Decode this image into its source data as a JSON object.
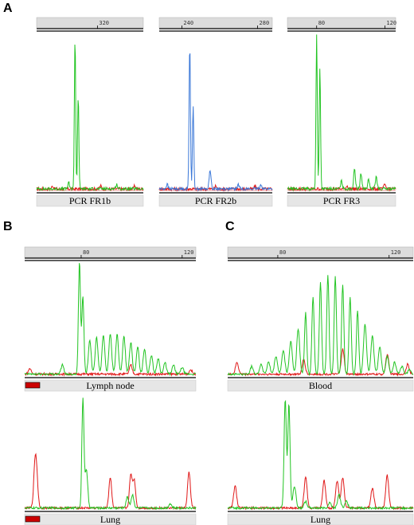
{
  "figure": {
    "panel_letters": {
      "a": "A",
      "b": "B",
      "c": "C"
    }
  },
  "colors": {
    "green": "#22c422",
    "blue": "#3b78d8",
    "red": "#e01818",
    "axis_bar": "#dcdcdc",
    "baseline": "#000000"
  },
  "chart_data": [
    {
      "id": "A1",
      "type": "line",
      "label": "PCR FR1b",
      "x_ticks": [
        "320"
      ],
      "series": [
        {
          "color": "green",
          "peaks": [
            [
              0.36,
              1.0
            ],
            [
              0.39,
              0.62
            ],
            [
              0.3,
              0.04
            ],
            [
              0.75,
              0.03
            ]
          ]
        },
        {
          "color": "red",
          "peaks": [
            [
              0.15,
              0.02
            ],
            [
              0.6,
              0.02
            ],
            [
              0.92,
              0.02
            ]
          ]
        }
      ]
    },
    {
      "id": "A2",
      "type": "line",
      "label": "PCR FR2b",
      "x_ticks": [
        "240",
        "280"
      ],
      "series": [
        {
          "color": "blue",
          "peaks": [
            [
              0.27,
              0.98
            ],
            [
              0.3,
              0.55
            ],
            [
              0.45,
              0.13
            ],
            [
              0.07,
              0.03
            ],
            [
              0.7,
              0.03
            ],
            [
              0.9,
              0.03
            ]
          ]
        },
        {
          "color": "red",
          "peaks": [
            [
              0.5,
              0.02
            ],
            [
              0.85,
              0.02
            ]
          ]
        }
      ]
    },
    {
      "id": "A3",
      "type": "line",
      "label": "PCR FR3",
      "x_ticks": [
        "80",
        "120"
      ],
      "series": [
        {
          "color": "green",
          "peaks": [
            [
              0.27,
              1.0
            ],
            [
              0.3,
              0.8
            ],
            [
              0.62,
              0.13
            ],
            [
              0.68,
              0.1
            ],
            [
              0.75,
              0.06
            ],
            [
              0.82,
              0.08
            ],
            [
              0.5,
              0.05
            ]
          ]
        },
        {
          "color": "red",
          "peaks": [
            [
              0.55,
              0.02
            ],
            [
              0.9,
              0.03
            ]
          ]
        }
      ]
    },
    {
      "id": "B1",
      "type": "line",
      "label": "Lymph node",
      "x_ticks": [
        "80",
        "120"
      ],
      "series": [
        {
          "color": "green",
          "peaks": [
            [
              0.32,
              1.0
            ],
            [
              0.34,
              0.7
            ],
            [
              0.38,
              0.3
            ],
            [
              0.42,
              0.33
            ],
            [
              0.46,
              0.35
            ],
            [
              0.5,
              0.36
            ],
            [
              0.54,
              0.35
            ],
            [
              0.58,
              0.33
            ],
            [
              0.62,
              0.28
            ],
            [
              0.66,
              0.24
            ],
            [
              0.7,
              0.22
            ],
            [
              0.74,
              0.17
            ],
            [
              0.78,
              0.14
            ],
            [
              0.82,
              0.1
            ],
            [
              0.87,
              0.08
            ],
            [
              0.92,
              0.06
            ],
            [
              0.22,
              0.08
            ]
          ]
        },
        {
          "color": "red",
          "peaks": [
            [
              0.03,
              0.05
            ],
            [
              0.62,
              0.08
            ],
            [
              0.97,
              0.04
            ]
          ]
        }
      ]
    },
    {
      "id": "B2",
      "type": "line",
      "label": "Lung",
      "x_ticks": [],
      "series": [
        {
          "color": "green",
          "peaks": [
            [
              0.34,
              1.0
            ],
            [
              0.36,
              0.35
            ],
            [
              0.6,
              0.1
            ],
            [
              0.63,
              0.12
            ],
            [
              0.85,
              0.04
            ]
          ]
        },
        {
          "color": "red",
          "peaks": [
            [
              0.06,
              0.35
            ],
            [
              0.07,
              0.25
            ],
            [
              0.5,
              0.28
            ],
            [
              0.62,
              0.3
            ],
            [
              0.64,
              0.25
            ],
            [
              0.96,
              0.33
            ]
          ]
        }
      ]
    },
    {
      "id": "C1",
      "type": "line",
      "label": "Blood",
      "x_ticks": [
        "80",
        "120"
      ],
      "series": [
        {
          "color": "green",
          "peaks": [
            [
              0.13,
              0.08
            ],
            [
              0.18,
              0.1
            ],
            [
              0.22,
              0.12
            ],
            [
              0.26,
              0.18
            ],
            [
              0.3,
              0.24
            ],
            [
              0.34,
              0.33
            ],
            [
              0.38,
              0.45
            ],
            [
              0.42,
              0.62
            ],
            [
              0.46,
              0.78
            ],
            [
              0.5,
              0.92
            ],
            [
              0.54,
              1.0
            ],
            [
              0.58,
              0.98
            ],
            [
              0.62,
              0.9
            ],
            [
              0.66,
              0.78
            ],
            [
              0.7,
              0.64
            ],
            [
              0.74,
              0.5
            ],
            [
              0.78,
              0.38
            ],
            [
              0.82,
              0.27
            ],
            [
              0.86,
              0.18
            ],
            [
              0.9,
              0.12
            ],
            [
              0.94,
              0.08
            ],
            [
              0.98,
              0.05
            ]
          ]
        },
        {
          "color": "red",
          "peaks": [
            [
              0.05,
              0.12
            ],
            [
              0.41,
              0.15
            ],
            [
              0.62,
              0.25
            ],
            [
              0.86,
              0.2
            ],
            [
              0.97,
              0.1
            ]
          ]
        }
      ]
    },
    {
      "id": "C2",
      "type": "line",
      "label": "Lung",
      "x_ticks": [],
      "series": [
        {
          "color": "green",
          "peaks": [
            [
              0.31,
              1.0
            ],
            [
              0.33,
              0.95
            ],
            [
              0.36,
              0.2
            ],
            [
              0.42,
              0.06
            ],
            [
              0.55,
              0.05
            ],
            [
              0.6,
              0.12
            ],
            [
              0.64,
              0.06
            ]
          ]
        },
        {
          "color": "red",
          "peaks": [
            [
              0.04,
              0.2
            ],
            [
              0.42,
              0.28
            ],
            [
              0.52,
              0.25
            ],
            [
              0.59,
              0.25
            ],
            [
              0.62,
              0.28
            ],
            [
              0.78,
              0.18
            ],
            [
              0.86,
              0.3
            ]
          ]
        }
      ]
    }
  ]
}
